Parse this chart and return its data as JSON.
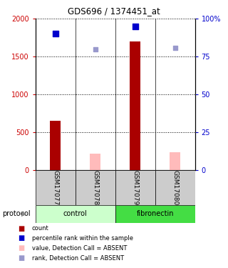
{
  "title": "GDS696 / 1374451_at",
  "samples": [
    "GSM17077",
    "GSM17078",
    "GSM17079",
    "GSM17080"
  ],
  "bar_values": [
    650,
    220,
    1700,
    240
  ],
  "rank_values": [
    1800,
    1600,
    1900,
    1620
  ],
  "is_absent": [
    false,
    true,
    false,
    true
  ],
  "ylim_left": [
    0,
    2000
  ],
  "yticks_left": [
    0,
    500,
    1000,
    1500,
    2000
  ],
  "ytick_labels_left": [
    "0",
    "500",
    "1000",
    "1500",
    "2000"
  ],
  "ytick_labels_right": [
    "0",
    "25",
    "50",
    "75",
    "100%"
  ],
  "bar_color_present": "#aa0000",
  "bar_color_absent": "#ffbbbb",
  "rank_color_present": "#0000cc",
  "rank_color_absent": "#9999cc",
  "control_color": "#ccffcc",
  "fibronectin_color": "#44dd44",
  "bar_width": 0.28,
  "bg_color": "#ffffff"
}
